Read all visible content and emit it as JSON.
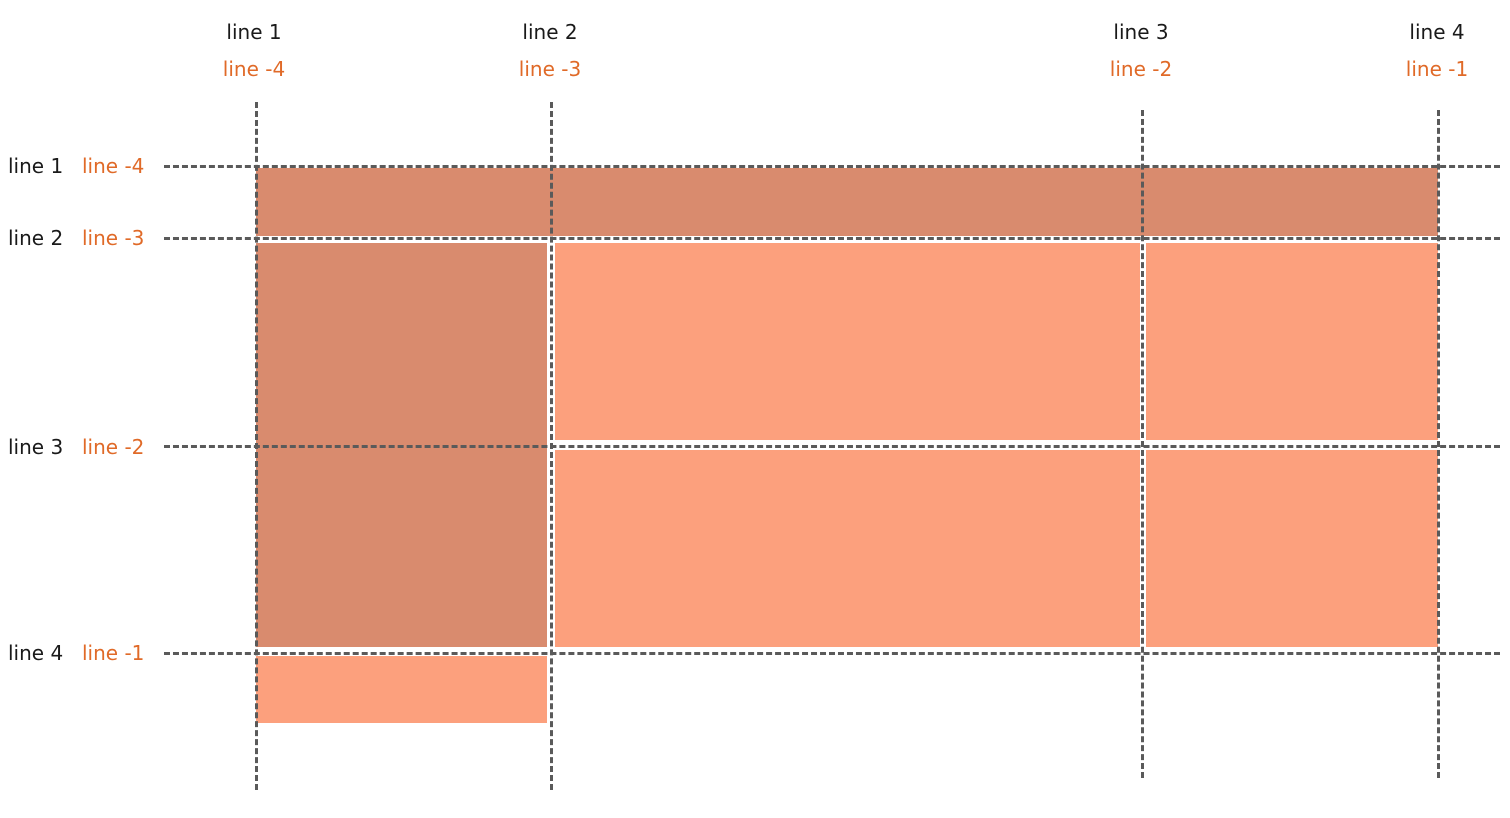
{
  "columns": [
    {
      "positive": "line 1",
      "negative": "line -4"
    },
    {
      "positive": "line 2",
      "negative": "line -3"
    },
    {
      "positive": "line 3",
      "negative": "line -2"
    },
    {
      "positive": "line 4",
      "negative": "line -1"
    }
  ],
  "rows": [
    {
      "positive": "line 1",
      "negative": "line -4"
    },
    {
      "positive": "line 2",
      "negative": "line -3"
    },
    {
      "positive": "line 3",
      "negative": "line -2"
    },
    {
      "positive": "line 4",
      "negative": "line -1"
    }
  ],
  "colors": {
    "item_light": "#fca07d",
    "item_dark": "#d98b6e",
    "label_positive": "#1a1a1a",
    "label_negative": "#e06a28",
    "grid_line": "#5a5a5a"
  }
}
